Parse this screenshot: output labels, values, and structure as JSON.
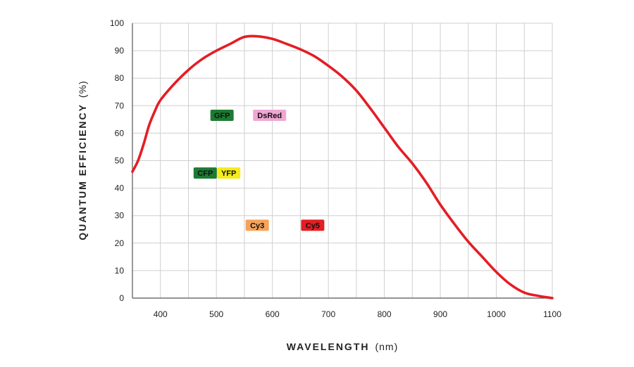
{
  "chart_data": {
    "type": "line",
    "title": "",
    "xlabel": "WAVELENGTH",
    "xlabel_unit": "(nm)",
    "ylabel": "QUANTUM EFFICIENCY",
    "ylabel_unit": "(%)",
    "xlim": [
      350,
      1100
    ],
    "ylim": [
      0,
      100
    ],
    "x_ticks": [
      400,
      500,
      600,
      700,
      800,
      900,
      1000,
      1100
    ],
    "y_ticks": [
      0,
      10,
      20,
      30,
      40,
      50,
      60,
      70,
      80,
      90,
      100
    ],
    "grid": true,
    "series": [
      {
        "name": "Quantum Efficiency",
        "color": "#e31e24",
        "x": [
          350,
          360,
          370,
          380,
          390,
          400,
          425,
          450,
          475,
          500,
          525,
          550,
          575,
          600,
          625,
          650,
          675,
          700,
          725,
          750,
          775,
          800,
          825,
          850,
          875,
          900,
          925,
          950,
          975,
          1000,
          1025,
          1050,
          1075,
          1100
        ],
        "y": [
          46,
          50,
          56,
          63,
          68,
          72,
          78,
          83,
          87,
          90,
          92.5,
          95,
          95.2,
          94.3,
          92.5,
          90.5,
          88,
          84.5,
          80.5,
          75.5,
          69,
          62,
          55,
          49,
          42,
          34,
          27,
          20.5,
          15,
          9.5,
          5,
          2,
          0.8,
          0
        ]
      }
    ],
    "annotations": [
      {
        "label": "GFP",
        "x": 510,
        "y": 66.5,
        "color": "#1e7a32"
      },
      {
        "label": "DsRed",
        "x": 595,
        "y": 66.5,
        "color": "#f0a6d4"
      },
      {
        "label": "CFP",
        "x": 480,
        "y": 45.5,
        "color": "#1e7a32"
      },
      {
        "label": "YFP",
        "x": 522,
        "y": 45.5,
        "color": "#f4ec1c"
      },
      {
        "label": "Cy3",
        "x": 573,
        "y": 26.5,
        "color": "#f5a25a"
      },
      {
        "label": "Cy5",
        "x": 672,
        "y": 26.5,
        "color": "#e31e24"
      }
    ]
  }
}
